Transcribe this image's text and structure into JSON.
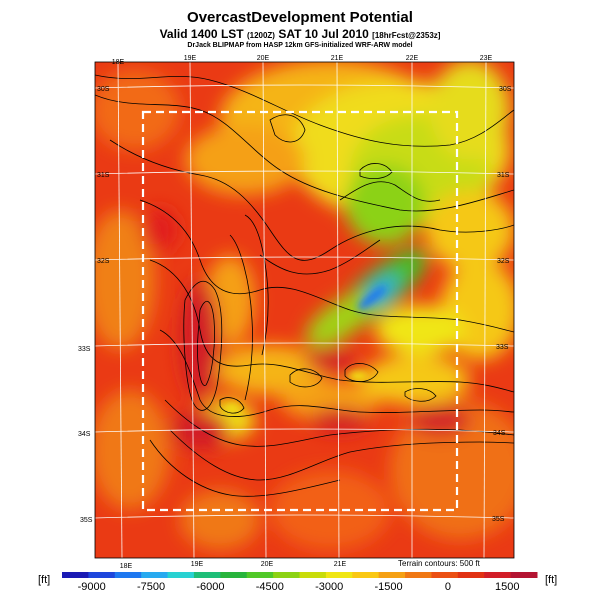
{
  "header": {
    "title": "OvercastDevelopment Potential",
    "subtitle_main": "Valid 1400 LST",
    "subtitle_local": "(1200Z)",
    "subtitle_date": "SAT 10 Jul 2010",
    "subtitle_forecast": "[18hrFcst@2353z]",
    "credit": "DrJack BLIPMAP from HASP 12km GFS-initialized WRF-ARW model"
  },
  "map": {
    "top_lon_labels": [
      "18E",
      "19E",
      "20E",
      "21E",
      "22E",
      "23E"
    ],
    "bottom_lon_labels": [
      "18E",
      "19E",
      "20E",
      "21E"
    ],
    "right_lat_labels": [
      "30S",
      "31S",
      "32S",
      "33S",
      "34S",
      "35S"
    ],
    "left_lat_labels": [
      "30S",
      "31S",
      "32S",
      "33S",
      "34S",
      "35S"
    ],
    "terrain_note": "Terrain contours: 500 ft"
  },
  "colorbar": {
    "unit_left": "[ft]",
    "unit_right": "[ft]",
    "tick_labels": [
      "-9000",
      "-7500",
      "-6000",
      "-4500",
      "-3000",
      "-1500",
      "0",
      "1500"
    ],
    "tick_values": [
      -9000,
      -7500,
      -6000,
      -4500,
      -3000,
      -1500,
      0,
      1500
    ],
    "range": [
      -9750,
      2250
    ],
    "colors": [
      "#1a1ab4",
      "#1e46dc",
      "#1e78f0",
      "#28aaf0",
      "#28d2d2",
      "#1ebe78",
      "#28b43c",
      "#50c828",
      "#8cd214",
      "#c8dc0a",
      "#f0e614",
      "#fac814",
      "#f5a014",
      "#f07814",
      "#eb5014",
      "#e13214",
      "#d21e28",
      "#b41432"
    ]
  }
}
